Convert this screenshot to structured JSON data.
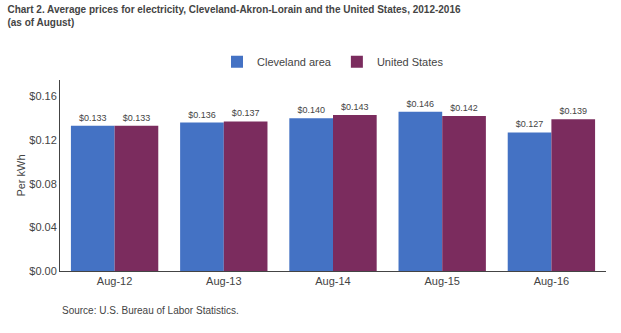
{
  "chart_data": {
    "type": "bar",
    "title": "Chart 2. Average prices for electricity, Cleveland-Akron-Lorain and the United States, 2012-2016",
    "subtitle": "(as of August)",
    "y_label": "Per kWh",
    "annotations": [
      "Source: U.S. Bureau of Labor Statistics."
    ],
    "categories": [
      "Aug-12",
      "Aug-13",
      "Aug-14",
      "Aug-15",
      "Aug-16"
    ],
    "series": [
      {
        "name": "Cleveland area",
        "color": "#4472C4",
        "values": [
          0.133,
          0.136,
          0.14,
          0.146,
          0.127
        ],
        "value_labels": [
          "$0.133",
          "$0.136",
          "$0.140",
          "$0.146",
          "$0.127"
        ]
      },
      {
        "name": "United States",
        "color": "#7B2C5E",
        "values": [
          0.133,
          0.137,
          0.143,
          0.142,
          0.139
        ],
        "value_labels": [
          "$0.133",
          "$0.137",
          "$0.143",
          "$0.142",
          "$0.139"
        ]
      }
    ],
    "ylim": [
      0,
      0.175
    ],
    "yticks": [
      {
        "value": 0.0,
        "label": "$0.00"
      },
      {
        "value": 0.04,
        "label": "$0.04"
      },
      {
        "value": 0.08,
        "label": "$0.08"
      },
      {
        "value": 0.12,
        "label": "$0.12"
      },
      {
        "value": 0.16,
        "label": "$0.16"
      }
    ],
    "grid": false,
    "legend": "top",
    "data_labels": true
  }
}
